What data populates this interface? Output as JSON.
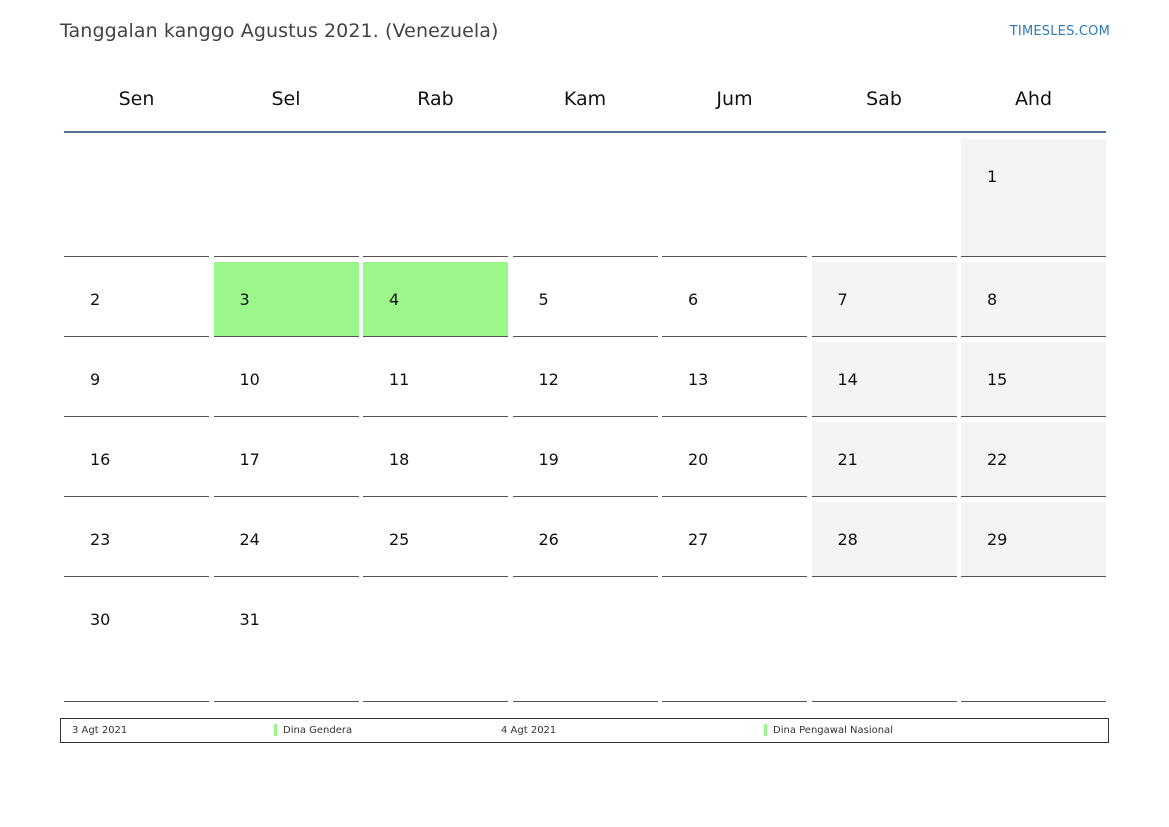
{
  "header": {
    "title": "Tanggalan kanggo Agustus 2021. (Venezuela)",
    "brand": "TIMESLES.COM"
  },
  "weekdays": [
    "Sen",
    "Sel",
    "Rab",
    "Kam",
    "Jum",
    "Sab",
    "Ahd"
  ],
  "weeks": [
    [
      "",
      "",
      "",
      "",
      "",
      "",
      "1"
    ],
    [
      "2",
      "3",
      "4",
      "5",
      "6",
      "7",
      "8"
    ],
    [
      "9",
      "10",
      "11",
      "12",
      "13",
      "14",
      "15"
    ],
    [
      "16",
      "17",
      "18",
      "19",
      "20",
      "21",
      "22"
    ],
    [
      "23",
      "24",
      "25",
      "26",
      "27",
      "28",
      "29"
    ],
    [
      "30",
      "31",
      "",
      "",
      "",
      "",
      ""
    ]
  ],
  "holidays": [
    "3",
    "4"
  ],
  "colors": {
    "holiday": "#9cf78b",
    "weekend": "#f4f4f4",
    "header_line": "#4f6f93",
    "brand": "#2f78b7"
  },
  "legend": [
    {
      "date": "3 Agt 2021",
      "name": "Dina Gendera"
    },
    {
      "date": "4 Agt 2021",
      "name": "Dina Pengawal Nasional"
    }
  ]
}
